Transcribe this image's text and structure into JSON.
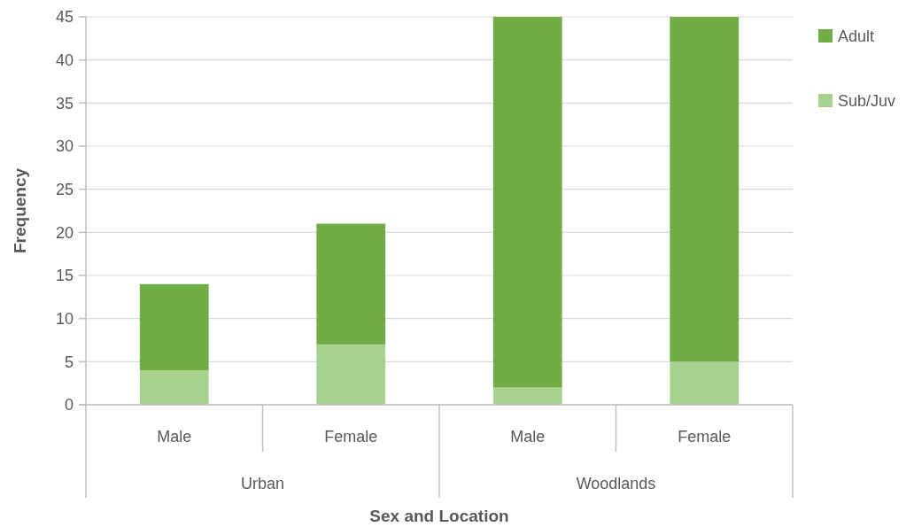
{
  "chart_data": {
    "type": "bar",
    "stacked": true,
    "xlabel": "Sex and Location",
    "ylabel": "Frequency",
    "categories": [
      "Male",
      "Female",
      "Male",
      "Female"
    ],
    "annotations": [
      "Urban",
      "Woodlands"
    ],
    "series": [
      {
        "name": "Sub/Juv",
        "color": "#a9d18e",
        "values": [
          4,
          7,
          2,
          5
        ]
      },
      {
        "name": "Adult",
        "color": "#70ad47",
        "values": [
          10,
          14,
          43,
          40
        ]
      }
    ],
    "ylim": [
      0,
      45
    ],
    "yticks": [
      0,
      5,
      10,
      15,
      20,
      25,
      30,
      35,
      40,
      45
    ],
    "grid": "y",
    "legend": "top right"
  }
}
